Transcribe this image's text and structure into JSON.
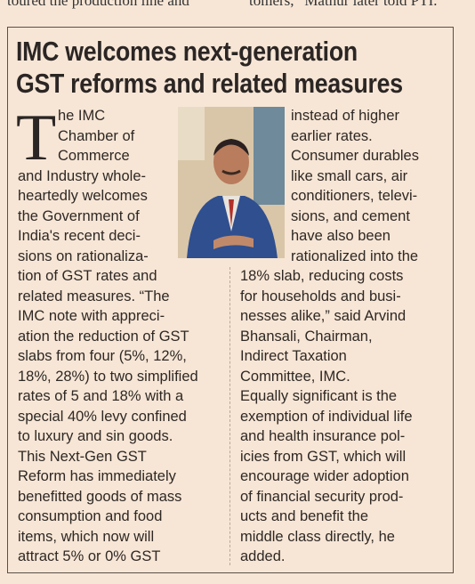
{
  "top_fragment": {
    "left": "toured the production line and",
    "right": "tomers,” Mathur later told PTI."
  },
  "article": {
    "headline": [
      "IMC welcomes next-generation",
      "GST reforms and related measures"
    ],
    "drop_cap": "T",
    "left_column": [
      "he IMC",
      "Chamber of",
      "Commerce",
      "and Industry whole-",
      "heartedly welcomes",
      "the Government of",
      "India's recent deci-",
      "sions on rationaliza-",
      "tion of GST rates and",
      "related measures. “The",
      "IMC note with appreci-",
      "ation the reduction of GST",
      "slabs from four (5%, 12%,",
      "18%, 28%) to two simplified",
      "rates of 5 and 18% with a",
      "special 40% levy confined",
      "to luxury and sin goods.",
      "This Next-Gen GST",
      "Reform has immediately",
      "benefitted goods of mass",
      "consumption and food",
      "items, which now will",
      "attract 5% or 0% GST"
    ],
    "right_column": [
      "instead of higher",
      "earlier rates.",
      "Consumer durables",
      "like small cars, air",
      "conditioners, televi-",
      "sions, and cement",
      "have also been",
      "rationalized into the",
      "18% slab, reducing costs",
      "for households and busi-",
      "nesses alike,” said Arvind",
      "Bhansali, Chairman,",
      "Indirect Taxation",
      "Committee, IMC.",
      "Equally significant is the",
      "exemption of individual life",
      "and health insurance pol-",
      "icies from GST, which will",
      "encourage wider adoption",
      "of financial security prod-",
      "ucts and benefit the",
      "middle class directly, he",
      "added."
    ]
  }
}
